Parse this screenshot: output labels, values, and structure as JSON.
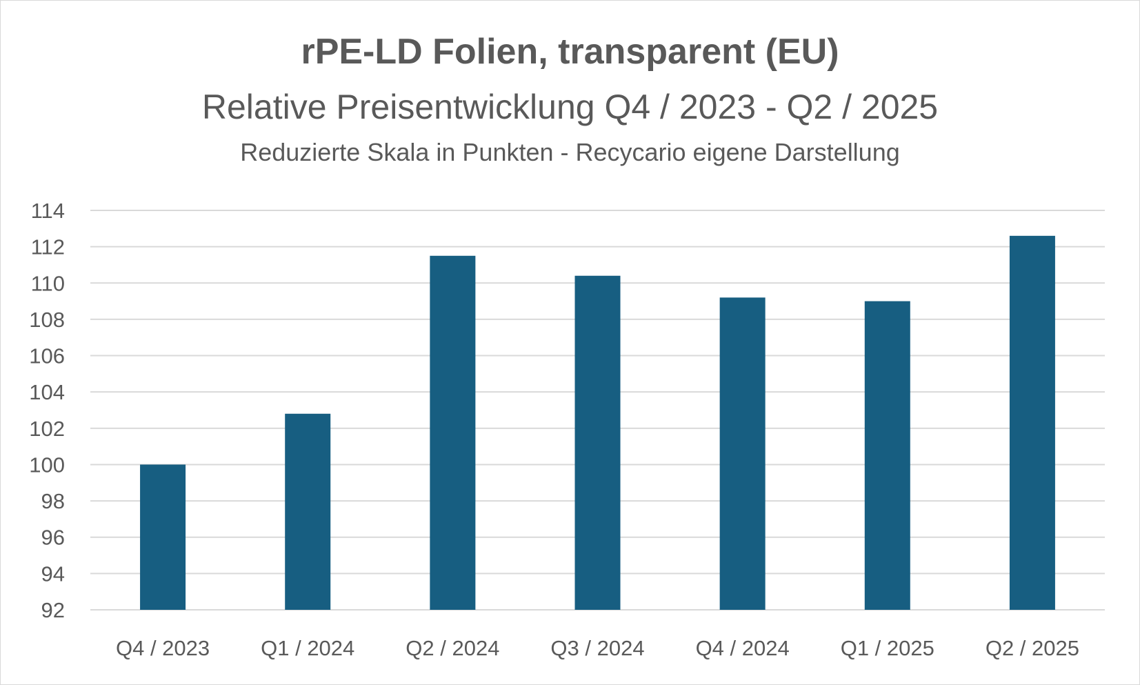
{
  "chart_data": {
    "type": "bar",
    "title": "rPE-LD Folien, transparent (EU)",
    "subtitle": "Relative Preisentwicklung Q4 / 2023 - Q2 / 2025",
    "note": "Reduzierte Skala in Punkten - Recycario eigene Darstellung",
    "categories": [
      "Q4 / 2023",
      "Q1 / 2024",
      "Q2 / 2024",
      "Q3 / 2024",
      "Q4 / 2024",
      "Q1 / 2025",
      "Q2 / 2025"
    ],
    "values": [
      100,
      102.8,
      111.5,
      110.4,
      109.2,
      109.0,
      112.6
    ],
    "ylim": [
      92,
      114
    ],
    "yticks": [
      "92",
      "94",
      "96",
      "98",
      "100",
      "102",
      "104",
      "106",
      "108",
      "110",
      "112",
      "114"
    ],
    "xlabel": "",
    "ylabel": "",
    "grid": true,
    "legend": "none",
    "colors": {
      "bar": "#175e81",
      "grid": "#d9d9d9",
      "text": "#595959"
    }
  }
}
